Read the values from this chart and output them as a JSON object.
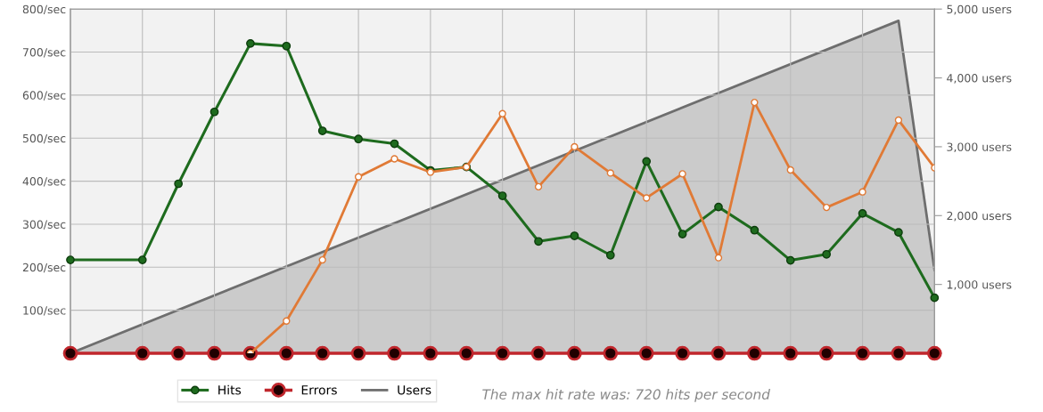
{
  "chart_data": {
    "type": "line",
    "categories": [
      null,
      null,
      null,
      null,
      null,
      null,
      null,
      null,
      null,
      null,
      null,
      null,
      null,
      null,
      null,
      null,
      null,
      null,
      null,
      null,
      null,
      null,
      null,
      null,
      null
    ],
    "series": [
      {
        "color": "#e07a36",
        "values": [
          null,
          null,
          null,
          null,
          null,
          0,
          75,
          217,
          410,
          452,
          421,
          433,
          557,
          387,
          480,
          419,
          361,
          417,
          222,
          583,
          426,
          339,
          375,
          542,
          431
        ]
      },
      {
        "name": "Hits",
        "color": "#1e6b1e",
        "values": [
          217,
          null,
          217,
          394,
          561,
          720,
          714,
          517,
          498,
          487,
          425,
          433,
          366,
          260,
          273,
          228,
          446,
          277,
          340,
          286,
          216,
          230,
          325,
          281,
          129
        ]
      },
      {
        "name": "Errors",
        "color": "#c0262c",
        "values": [
          0,
          null,
          0,
          0,
          0,
          0,
          0,
          0,
          0,
          0,
          0,
          0,
          0,
          0,
          0,
          0,
          0,
          0,
          0,
          0,
          0,
          0,
          0,
          0,
          0
        ]
      },
      {
        "name": "Users",
        "type": "area",
        "axis": "y2",
        "color": "#6e6e6e",
        "marker": "none",
        "values": [
          0,
          null,
          null,
          null,
          null,
          null,
          null,
          null,
          null,
          null,
          null,
          null,
          null,
          null,
          null,
          null,
          null,
          null,
          null,
          null,
          null,
          null,
          null,
          4830,
          1210
        ]
      }
    ],
    "ylim": [
      0,
      800
    ],
    "yticks": [
      {
        "value": 0,
        "label": null
      },
      {
        "value": 100,
        "label": "100/sec"
      },
      {
        "value": 200,
        "label": "200/sec"
      },
      {
        "value": 300,
        "label": "300/sec"
      },
      {
        "value": 400,
        "label": "400/sec"
      },
      {
        "value": 500,
        "label": "500/sec"
      },
      {
        "value": 600,
        "label": "600/sec"
      },
      {
        "value": 700,
        "label": "700/sec"
      },
      {
        "value": 800,
        "label": "800/sec"
      }
    ],
    "y2lim": [
      0,
      5000
    ],
    "y2ticks": [
      {
        "value": 0,
        "label": null
      },
      {
        "value": 1000,
        "label": "1,000 users"
      },
      {
        "value": 2000,
        "label": "2,000 users"
      },
      {
        "value": 3000,
        "label": "3,000 users"
      },
      {
        "value": 4000,
        "label": "4,000 users"
      },
      {
        "value": 5000,
        "label": "5,000 users"
      }
    ],
    "marker": "circle",
    "grid": true,
    "legend": "bottom",
    "annotations": [
      "The max hit rate was: 720 hits per second"
    ]
  }
}
